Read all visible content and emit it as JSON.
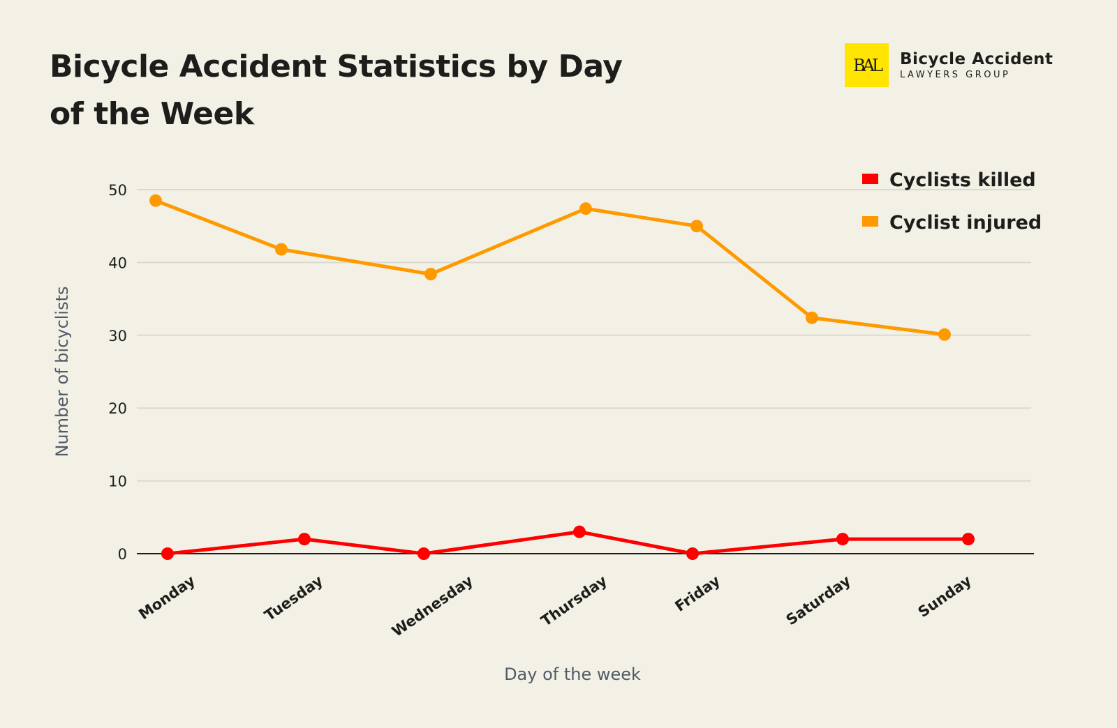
{
  "header": {
    "title": "Bicycle Accident Statistics by Day of the Week"
  },
  "logo": {
    "mark": "BAL",
    "line1": "Bicycle Accident",
    "line2": "LAWYERS GROUP",
    "color": "#ffe500"
  },
  "chart_data": {
    "type": "line",
    "title": "Bicycle Accident Statistics by Day of the Week",
    "xlabel": "Day of the week",
    "ylabel": "Number of bicyclists",
    "categories": [
      "Monday",
      "Tuesday",
      "Wednesday",
      "Thursday",
      "Friday",
      "Saturday",
      "Sunday"
    ],
    "ylim": [
      0,
      50
    ],
    "yticks": [
      "0",
      "10",
      "20",
      "30",
      "40",
      "50"
    ],
    "grid": true,
    "legend": "top-right",
    "series": [
      {
        "name": "Cyclists killed",
        "color": "#ff0000",
        "values": [
          0,
          2,
          0,
          3,
          0,
          2,
          2
        ]
      },
      {
        "name": "Cyclist injured",
        "color": "#ff9900",
        "values": [
          48.5,
          41.8,
          38.4,
          47.4,
          45,
          32.4,
          30.1
        ]
      }
    ]
  }
}
